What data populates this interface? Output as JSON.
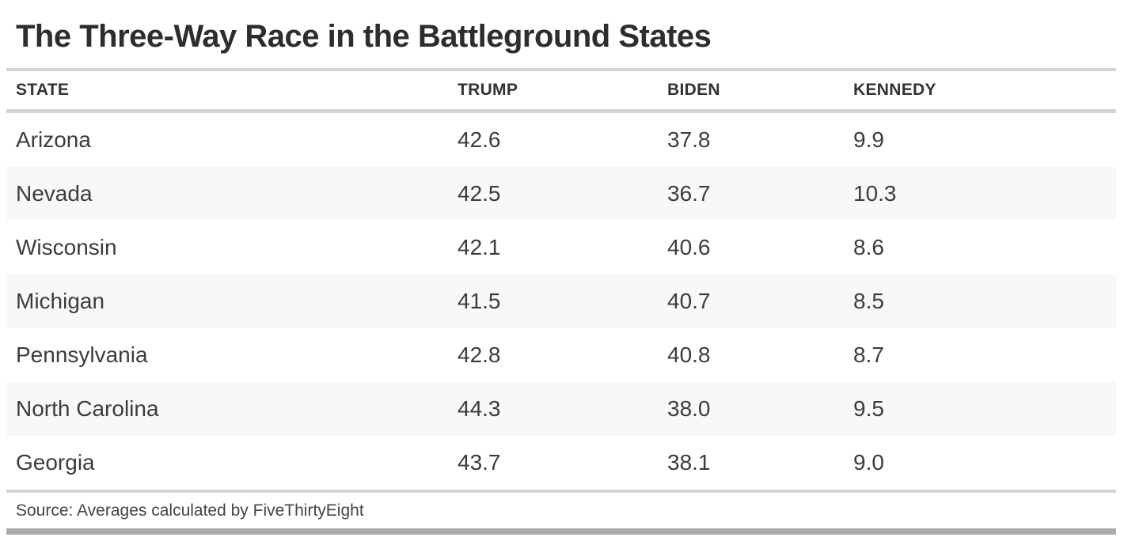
{
  "title": "The Three-Way Race in the Battleground States",
  "header": {
    "state": "STATE",
    "trump": "TRUMP",
    "biden": "BIDEN",
    "kennedy": "KENNEDY"
  },
  "rows": [
    {
      "state": "Arizona",
      "trump": "42.6",
      "biden": "37.8",
      "kennedy": "9.9"
    },
    {
      "state": "Nevada",
      "trump": "42.5",
      "biden": "36.7",
      "kennedy": "10.3"
    },
    {
      "state": "Wisconsin",
      "trump": "42.1",
      "biden": "40.6",
      "kennedy": "8.6"
    },
    {
      "state": "Michigan",
      "trump": "41.5",
      "biden": "40.7",
      "kennedy": "8.5"
    },
    {
      "state": "Pennsylvania",
      "trump": "42.8",
      "biden": "40.8",
      "kennedy": "8.7"
    },
    {
      "state": "North Carolina",
      "trump": "44.3",
      "biden": "38.0",
      "kennedy": "9.5"
    },
    {
      "state": "Georgia",
      "trump": "43.7",
      "biden": "38.1",
      "kennedy": "9.0"
    }
  ],
  "source": "Source: Averages calculated by FiveThirtyEight",
  "colors": {
    "title_text": "#2d2d2d",
    "header_text": "#333333",
    "cell_text": "#3c3c3c",
    "rule_light": "#d3d3d3",
    "row_alt_bg": "#f8f8f8",
    "bottom_bar": "#ababab",
    "background": "#ffffff"
  },
  "chart_data": {
    "type": "table",
    "title": "The Three-Way Race in the Battleground States",
    "columns": [
      "STATE",
      "TRUMP",
      "BIDEN",
      "KENNEDY"
    ],
    "rows": [
      [
        "Arizona",
        42.6,
        37.8,
        9.9
      ],
      [
        "Nevada",
        42.5,
        36.7,
        10.3
      ],
      [
        "Wisconsin",
        42.1,
        40.6,
        8.6
      ],
      [
        "Michigan",
        41.5,
        40.7,
        8.5
      ],
      [
        "Pennsylvania",
        42.8,
        40.8,
        8.7
      ],
      [
        "North Carolina",
        44.3,
        38.0,
        9.5
      ],
      [
        "Georgia",
        43.7,
        38.1,
        9.0
      ]
    ],
    "source": "Source: Averages calculated by FiveThirtyEight",
    "layout": {
      "zebra_striping": true,
      "striped_rows": [
        1,
        3,
        5
      ],
      "value_unit": "percent"
    }
  }
}
